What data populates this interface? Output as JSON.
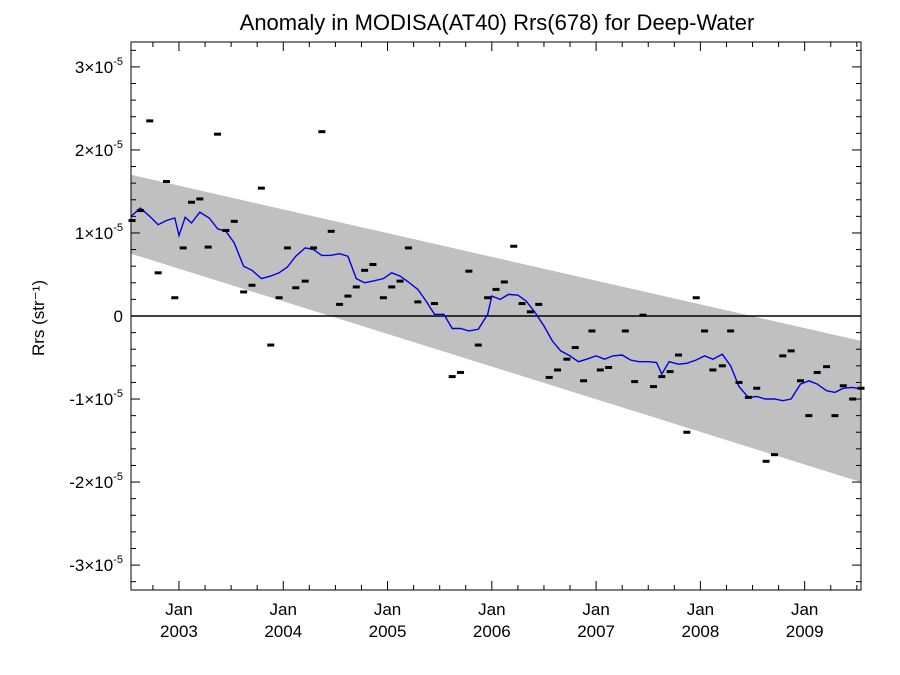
{
  "chart_data": {
    "type": "scatter",
    "title": "Anomaly in MODISA(AT40) Rrs(678) for Deep-Water",
    "ylabel": "Rrs (str⁻¹)",
    "xlabel": "",
    "x_unit": "year (decimal)",
    "xlim": [
      2002.54,
      2009.54
    ],
    "ylim": [
      -3.3e-05,
      3.3e-05
    ],
    "grid": false,
    "x_ticks": [
      {
        "value": 2003.0,
        "month": "Jan",
        "year": "2003"
      },
      {
        "value": 2004.0,
        "month": "Jan",
        "year": "2004"
      },
      {
        "value": 2005.0,
        "month": "Jan",
        "year": "2005"
      },
      {
        "value": 2006.0,
        "month": "Jan",
        "year": "2006"
      },
      {
        "value": 2007.0,
        "month": "Jan",
        "year": "2007"
      },
      {
        "value": 2008.0,
        "month": "Jan",
        "year": "2008"
      },
      {
        "value": 2009.0,
        "month": "Jan",
        "year": "2009"
      }
    ],
    "y_ticks": [
      {
        "value": 3e-05,
        "mant": "3",
        "exp": "-5",
        "sign": ""
      },
      {
        "value": 2e-05,
        "mant": "2",
        "exp": "-5",
        "sign": ""
      },
      {
        "value": 1e-05,
        "mant": "1",
        "exp": "-5",
        "sign": ""
      },
      {
        "value": 0,
        "mant": "0",
        "exp": "",
        "sign": ""
      },
      {
        "value": -1e-05,
        "mant": "1",
        "exp": "-5",
        "sign": "-"
      },
      {
        "value": -2e-05,
        "mant": "2",
        "exp": "-5",
        "sign": "-"
      },
      {
        "value": -3e-05,
        "mant": "3",
        "exp": "-5",
        "sign": "-"
      }
    ],
    "band": {
      "color": "#c0c0c0",
      "upper": [
        [
          2002.54,
          1.7e-05
        ],
        [
          2009.54,
          -3e-06
        ]
      ],
      "lower": [
        [
          2002.54,
          7.5e-06
        ],
        [
          2009.54,
          -2e-05
        ]
      ]
    },
    "zero_line": 0,
    "series": [
      {
        "kind": "points",
        "color": "#000000",
        "marker": "dash",
        "points": [
          [
            2002.55,
            1.15e-05
          ],
          [
            2002.63,
            1.27e-05
          ],
          [
            2002.72,
            2.35e-05
          ],
          [
            2002.8,
            5.2e-06
          ],
          [
            2002.88,
            1.62e-05
          ],
          [
            2002.96,
            2.2e-06
          ],
          [
            2003.04,
            8.2e-06
          ],
          [
            2003.12,
            1.37e-05
          ],
          [
            2003.2,
            1.41e-05
          ],
          [
            2003.28,
            8.3e-06
          ],
          [
            2003.37,
            2.19e-05
          ],
          [
            2003.45,
            1.03e-05
          ],
          [
            2003.53,
            1.14e-05
          ],
          [
            2003.62,
            2.9e-06
          ],
          [
            2003.7,
            3.7e-06
          ],
          [
            2003.79,
            1.54e-05
          ],
          [
            2003.88,
            -3.5e-06
          ],
          [
            2003.96,
            2.2e-06
          ],
          [
            2004.04,
            8.2e-06
          ],
          [
            2004.12,
            3.4e-06
          ],
          [
            2004.21,
            4.2e-06
          ],
          [
            2004.29,
            8.2e-06
          ],
          [
            2004.37,
            2.22e-05
          ],
          [
            2004.46,
            1.02e-05
          ],
          [
            2004.54,
            1.4e-06
          ],
          [
            2004.62,
            2.4e-06
          ],
          [
            2004.7,
            3.5e-06
          ],
          [
            2004.78,
            5.5e-06
          ],
          [
            2004.86,
            6.2e-06
          ],
          [
            2004.96,
            2.2e-06
          ],
          [
            2005.04,
            3.5e-06
          ],
          [
            2005.12,
            4.2e-06
          ],
          [
            2005.2,
            8.2e-06
          ],
          [
            2005.29,
            1.7e-06
          ],
          [
            2005.45,
            1.5e-06
          ],
          [
            2005.62,
            -7.3e-06
          ],
          [
            2005.7,
            -6.8e-06
          ],
          [
            2005.78,
            5.4e-06
          ],
          [
            2005.87,
            -3.5e-06
          ],
          [
            2005.96,
            2.2e-06
          ],
          [
            2006.04,
            3.2e-06
          ],
          [
            2006.12,
            4.1e-06
          ],
          [
            2006.21,
            8.4e-06
          ],
          [
            2006.29,
            1.5e-06
          ],
          [
            2006.37,
            5e-07
          ],
          [
            2006.45,
            1.4e-06
          ],
          [
            2006.55,
            -7.4e-06
          ],
          [
            2006.63,
            -6.5e-06
          ],
          [
            2006.72,
            -5.2e-06
          ],
          [
            2006.8,
            -3.8e-06
          ],
          [
            2006.88,
            -7.8e-06
          ],
          [
            2006.96,
            -1.8e-06
          ],
          [
            2007.04,
            -6.5e-06
          ],
          [
            2007.12,
            -6.2e-06
          ],
          [
            2007.28,
            -1.8e-06
          ],
          [
            2007.37,
            -7.9e-06
          ],
          [
            2007.45,
            1e-07
          ],
          [
            2007.55,
            -8.5e-06
          ],
          [
            2007.63,
            -7.3e-06
          ],
          [
            2007.71,
            -6.7e-06
          ],
          [
            2007.79,
            -4.7e-06
          ],
          [
            2007.87,
            -1.4e-05
          ],
          [
            2007.96,
            2.2e-06
          ],
          [
            2008.04,
            -1.8e-06
          ],
          [
            2008.12,
            -6.5e-06
          ],
          [
            2008.21,
            -6e-06
          ],
          [
            2008.29,
            -1.8e-06
          ],
          [
            2008.37,
            -8e-06
          ],
          [
            2008.46,
            -9.8e-06
          ],
          [
            2008.54,
            -8.7e-06
          ],
          [
            2008.63,
            -1.75e-05
          ],
          [
            2008.71,
            -1.67e-05
          ],
          [
            2008.79,
            -4.8e-06
          ],
          [
            2008.87,
            -4.2e-06
          ],
          [
            2008.96,
            -7.8e-06
          ],
          [
            2009.04,
            -1.2e-05
          ],
          [
            2009.12,
            -6.8e-06
          ],
          [
            2009.21,
            -6.1e-06
          ],
          [
            2009.29,
            -1.2e-05
          ],
          [
            2009.37,
            -8.4e-06
          ],
          [
            2009.46,
            -1e-05
          ],
          [
            2009.54,
            -8.7e-06
          ]
        ]
      },
      {
        "kind": "line",
        "color": "#0000e0",
        "points": [
          [
            2002.54,
            1.2e-05
          ],
          [
            2002.63,
            1.3e-05
          ],
          [
            2002.72,
            1.2e-05
          ],
          [
            2002.8,
            1.1e-05
          ],
          [
            2002.88,
            1.15e-05
          ],
          [
            2002.96,
            1.18e-05
          ],
          [
            2003.0,
            9.7e-06
          ],
          [
            2003.06,
            1.19e-05
          ],
          [
            2003.12,
            1.12e-05
          ],
          [
            2003.2,
            1.25e-05
          ],
          [
            2003.29,
            1.18e-05
          ],
          [
            2003.37,
            1.05e-05
          ],
          [
            2003.45,
            1.02e-05
          ],
          [
            2003.53,
            8.8e-06
          ],
          [
            2003.62,
            6e-06
          ],
          [
            2003.7,
            5.5e-06
          ],
          [
            2003.79,
            4.5e-06
          ],
          [
            2003.88,
            4.8e-06
          ],
          [
            2003.96,
            5.2e-06
          ],
          [
            2004.04,
            5.9e-06
          ],
          [
            2004.12,
            7.2e-06
          ],
          [
            2004.21,
            8.2e-06
          ],
          [
            2004.29,
            8e-06
          ],
          [
            2004.37,
            7.3e-06
          ],
          [
            2004.45,
            7.3e-06
          ],
          [
            2004.54,
            7.5e-06
          ],
          [
            2004.62,
            7.2e-06
          ],
          [
            2004.7,
            4.5e-06
          ],
          [
            2004.78,
            4e-06
          ],
          [
            2004.86,
            4.2e-06
          ],
          [
            2004.96,
            4.5e-06
          ],
          [
            2005.04,
            5.2e-06
          ],
          [
            2005.12,
            4.8e-06
          ],
          [
            2005.2,
            4.1e-06
          ],
          [
            2005.29,
            3.2e-06
          ],
          [
            2005.37,
            1.8e-06
          ],
          [
            2005.45,
            2e-07
          ],
          [
            2005.54,
            2e-07
          ],
          [
            2005.62,
            -1.5e-06
          ],
          [
            2005.7,
            -1.5e-06
          ],
          [
            2005.78,
            -1.8e-06
          ],
          [
            2005.87,
            -1.6e-06
          ],
          [
            2005.96,
            2e-07
          ],
          [
            2006.0,
            2.4e-06
          ],
          [
            2006.08,
            2e-06
          ],
          [
            2006.16,
            2.6e-06
          ],
          [
            2006.25,
            2.5e-06
          ],
          [
            2006.33,
            1.8e-06
          ],
          [
            2006.41,
            5e-07
          ],
          [
            2006.5,
            -1.2e-06
          ],
          [
            2006.58,
            -3e-06
          ],
          [
            2006.66,
            -4.2e-06
          ],
          [
            2006.75,
            -4.8e-06
          ],
          [
            2006.83,
            -5.5e-06
          ],
          [
            2006.91,
            -5.2e-06
          ],
          [
            2007.0,
            -4.8e-06
          ],
          [
            2007.08,
            -5.2e-06
          ],
          [
            2007.16,
            -4.8e-06
          ],
          [
            2007.25,
            -4.7e-06
          ],
          [
            2007.33,
            -5.3e-06
          ],
          [
            2007.41,
            -5.5e-06
          ],
          [
            2007.5,
            -5.5e-06
          ],
          [
            2007.58,
            -5.6e-06
          ],
          [
            2007.63,
            -7e-06
          ],
          [
            2007.7,
            -5.5e-06
          ],
          [
            2007.79,
            -5.8e-06
          ],
          [
            2007.87,
            -5.7e-06
          ],
          [
            2007.96,
            -5.3e-06
          ],
          [
            2008.04,
            -4.8e-06
          ],
          [
            2008.12,
            -5.2e-06
          ],
          [
            2008.21,
            -4.6e-06
          ],
          [
            2008.29,
            -6e-06
          ],
          [
            2008.37,
            -8.5e-06
          ],
          [
            2008.46,
            -9.8e-06
          ],
          [
            2008.54,
            -9.7e-06
          ],
          [
            2008.62,
            -1e-05
          ],
          [
            2008.71,
            -1e-05
          ],
          [
            2008.79,
            -1.02e-05
          ],
          [
            2008.87,
            -1e-05
          ],
          [
            2008.96,
            -8.2e-06
          ],
          [
            2009.04,
            -7.8e-06
          ],
          [
            2009.12,
            -8.2e-06
          ],
          [
            2009.21,
            -9e-06
          ],
          [
            2009.29,
            -9.2e-06
          ],
          [
            2009.37,
            -8.7e-06
          ],
          [
            2009.46,
            -8.6e-06
          ],
          [
            2009.54,
            -8.8e-06
          ]
        ]
      }
    ]
  }
}
